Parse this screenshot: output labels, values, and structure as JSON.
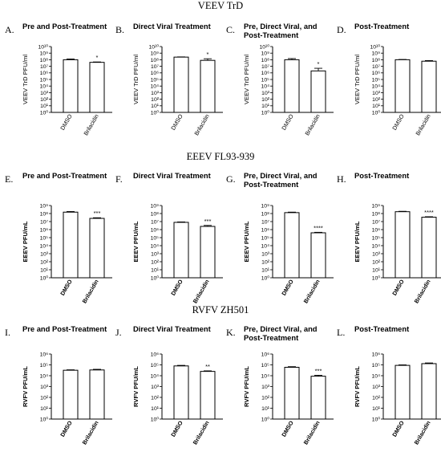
{
  "sections": [
    {
      "title": "VEEV TrD"
    },
    {
      "title": "EEEV FL93-939"
    },
    {
      "title": "RVFV ZH501"
    }
  ],
  "chart_data": [
    {
      "letter": "A.",
      "type": "bar",
      "title_lines": [
        "Pre and Post-Treatment"
      ],
      "ylabel": "VEEV TrD PFU/ml",
      "categories": [
        "DMSO",
        "Brilacidin"
      ],
      "values": [
        100000000.0,
        40000000.0
      ],
      "error_upper": [
        130000000.0,
        46000000.0
      ],
      "significance": [
        "",
        "*"
      ],
      "yscale": "log",
      "ylim": [
        1,
        10000000000.0
      ],
      "yticks": [
        "10⁰",
        "10¹",
        "10²",
        "10³",
        "10⁴",
        "10⁵",
        "10⁶",
        "10⁷",
        "10⁸",
        "10⁹",
        "10¹⁰"
      ]
    },
    {
      "letter": "B.",
      "type": "bar",
      "title_lines": [
        "Direct Viral Treatment"
      ],
      "ylabel": "VEEV TrD PFU/ml",
      "categories": [
        "DMSO",
        "Brilacidin"
      ],
      "values": [
        250000000.0,
        80000000.0
      ],
      "error_upper": [
        270000000.0,
        140000000.0
      ],
      "significance": [
        "",
        "*"
      ],
      "yscale": "log",
      "ylim": [
        1,
        10000000000.0
      ],
      "yticks": [
        "10⁰",
        "10¹",
        "10²",
        "10³",
        "10⁴",
        "10⁵",
        "10⁶",
        "10⁷",
        "10⁸",
        "10⁹",
        "10¹⁰"
      ]
    },
    {
      "letter": "C.",
      "type": "bar",
      "title_lines": [
        "Pre, Direct Viral, and",
        "Post-Treatment"
      ],
      "ylabel": "VEEV TrD PFU/ml",
      "categories": [
        "DMSO",
        "Brilacidin"
      ],
      "values": [
        100000000.0,
        2000000.0
      ],
      "error_upper": [
        150000000.0,
        5000000.0
      ],
      "significance": [
        "",
        "*"
      ],
      "yscale": "log",
      "ylim": [
        1,
        10000000000.0
      ],
      "yticks": [
        "10⁰",
        "10¹",
        "10²",
        "10³",
        "10⁴",
        "10⁵",
        "10⁶",
        "10⁷",
        "10⁸",
        "10⁹",
        "10¹⁰"
      ]
    },
    {
      "letter": "D.",
      "type": "bar",
      "title_lines": [
        "Post-Treatment"
      ],
      "ylabel": "VEEV TrD PFU/ml",
      "categories": [
        "DMSO",
        "Brilacidin"
      ],
      "values": [
        100000000.0,
        60000000.0
      ],
      "error_upper": [
        110000000.0,
        75000000.0
      ],
      "significance": [
        "",
        ""
      ],
      "yscale": "log",
      "ylim": [
        1,
        10000000000.0
      ],
      "yticks": [
        "10⁰",
        "10¹",
        "10²",
        "10³",
        "10⁴",
        "10⁵",
        "10⁶",
        "10⁷",
        "10⁸",
        "10⁹",
        "10¹⁰"
      ]
    },
    {
      "letter": "E.",
      "type": "bar",
      "title_lines": [
        "Pre and Post-Treatment"
      ],
      "ylabel": "EEEV PFU/mL",
      "categories": [
        "DMSO",
        "Brilacidin"
      ],
      "values": [
        150000000.0,
        25000000.0
      ],
      "error_upper": [
        180000000.0,
        30000000.0
      ],
      "significance": [
        "",
        "***"
      ],
      "yscale": "log",
      "ylim": [
        1,
        1000000000.0
      ],
      "yticks": [
        "10⁰",
        "10¹",
        "10²",
        "10³",
        "10⁴",
        "10⁵",
        "10⁶",
        "10⁷",
        "10⁸",
        "10⁹"
      ]
    },
    {
      "letter": "F.",
      "type": "bar",
      "title_lines": [
        "Direct Viral Treatment"
      ],
      "ylabel": "EEEV PFU/mL",
      "categories": [
        "DMSO",
        "Brilacidin"
      ],
      "values": [
        8000000.0,
        2500000.0
      ],
      "error_upper": [
        9000000.0,
        3300000.0
      ],
      "significance": [
        "",
        "***"
      ],
      "yscale": "log",
      "ylim": [
        1,
        1000000000.0
      ],
      "yticks": [
        "10⁰",
        "10¹",
        "10²",
        "10³",
        "10⁴",
        "10⁵",
        "10⁶",
        "10⁷",
        "10⁸",
        "10⁹"
      ]
    },
    {
      "letter": "G.",
      "type": "bar",
      "title_lines": [
        "Pre, Direct Viral, and",
        "Post-Treatment"
      ],
      "ylabel": "EEEV PFU/mL",
      "categories": [
        "DMSO",
        "Brilacidin"
      ],
      "values": [
        130000000.0,
        400000.0
      ],
      "error_upper": [
        150000000.0,
        460000.0
      ],
      "significance": [
        "",
        "****"
      ],
      "yscale": "log",
      "ylim": [
        1,
        1000000000.0
      ],
      "yticks": [
        "10⁰",
        "10¹",
        "10²",
        "10³",
        "10⁴",
        "10⁵",
        "10⁶",
        "10⁷",
        "10⁸",
        "10⁹"
      ]
    },
    {
      "letter": "H.",
      "type": "bar",
      "title_lines": [
        "Post-Treatment"
      ],
      "ylabel": "EEEV PFU/mL",
      "categories": [
        "DMSO",
        "Brilacidin"
      ],
      "values": [
        170000000.0,
        35000000.0
      ],
      "error_upper": [
        190000000.0,
        40000000.0
      ],
      "significance": [
        "",
        "****"
      ],
      "yscale": "log",
      "ylim": [
        1,
        1000000000.0
      ],
      "yticks": [
        "10⁰",
        "10¹",
        "10²",
        "10³",
        "10⁴",
        "10⁵",
        "10⁶",
        "10⁷",
        "10⁸",
        "10⁹"
      ]
    },
    {
      "letter": "I.",
      "type": "bar",
      "title_lines": [
        "Pre and Post-Treatment"
      ],
      "ylabel": "RVFV PFU/mL",
      "categories": [
        "DMSO",
        "Brilacidin"
      ],
      "values": [
        32000.0,
        34000.0
      ],
      "error_upper": [
        35000.0,
        39000.0
      ],
      "significance": [
        "",
        ""
      ],
      "yscale": "log",
      "ylim": [
        1,
        1000000.0
      ],
      "yticks": [
        "10⁰",
        "10¹",
        "10²",
        "10³",
        "10⁴",
        "10⁵",
        "10⁶"
      ]
    },
    {
      "letter": "J.",
      "type": "bar",
      "title_lines": [
        "Direct Viral Treatment"
      ],
      "ylabel": "RVFV PFU/mL",
      "categories": [
        "DMSO",
        "Brilacidin"
      ],
      "values": [
        80000.0,
        25000.0
      ],
      "error_upper": [
        90000.0,
        28000.0
      ],
      "significance": [
        "",
        "**"
      ],
      "yscale": "log",
      "ylim": [
        1,
        1000000.0
      ],
      "yticks": [
        "10⁰",
        "10¹",
        "10²",
        "10³",
        "10⁴",
        "10⁵",
        "10⁶"
      ]
    },
    {
      "letter": "K.",
      "type": "bar",
      "title_lines": [
        "Pre, Direct Viral, and",
        "Post-Treatment"
      ],
      "ylabel": "RVFV PFU/mL",
      "categories": [
        "DMSO",
        "Brilacidin"
      ],
      "values": [
        60000.0,
        9000.0
      ],
      "error_upper": [
        68000.0,
        11000.0
      ],
      "significance": [
        "",
        "***"
      ],
      "yscale": "log",
      "ylim": [
        1,
        1000000.0
      ],
      "yticks": [
        "10⁰",
        "10¹",
        "10²",
        "10³",
        "10⁴",
        "10⁵",
        "10⁶"
      ]
    },
    {
      "letter": "L.",
      "type": "bar",
      "title_lines": [
        "Post-Treatment"
      ],
      "ylabel": "RVFV PFU/mL",
      "categories": [
        "DMSO",
        "Brilacidin"
      ],
      "values": [
        90000.0,
        130000.0
      ],
      "error_upper": [
        100000.0,
        150000.0
      ],
      "significance": [
        "",
        ""
      ],
      "yscale": "log",
      "ylim": [
        1,
        1000000.0
      ],
      "yticks": [
        "10⁰",
        "10¹",
        "10²",
        "10³",
        "10⁴",
        "10⁵",
        "10⁶"
      ]
    }
  ]
}
